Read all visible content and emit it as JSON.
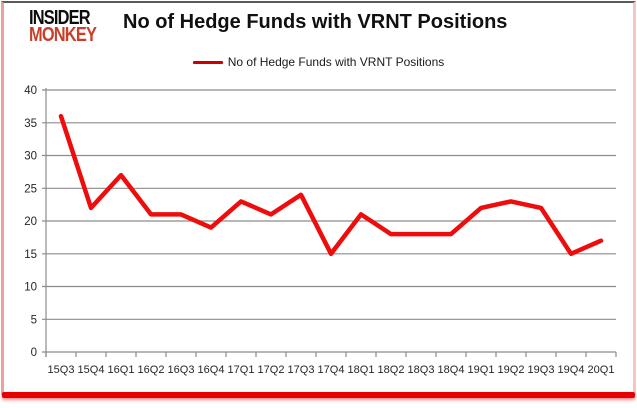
{
  "logo": {
    "line1": "INSIDER",
    "line2": "MONKEY"
  },
  "colors": {
    "line_red": "#ee0c0c",
    "legend_red": "#cc0000",
    "logo_red": "#c8402c",
    "bottom_bar_red": "#e60000",
    "grid_gray": "#8c8c8c",
    "label_dark": "#262626"
  },
  "chart_data": {
    "type": "line",
    "title": "No of Hedge Funds with VRNT Positions",
    "legend": "No of Hedge Funds with VRNT Positions",
    "categories": [
      "15Q3",
      "15Q4",
      "16Q1",
      "16Q2",
      "16Q3",
      "16Q4",
      "17Q1",
      "17Q2",
      "17Q3",
      "17Q4",
      "18Q1",
      "18Q2",
      "18Q3",
      "18Q4",
      "19Q1",
      "19Q2",
      "19Q3",
      "19Q4",
      "20Q1"
    ],
    "values": [
      36,
      22,
      27,
      21,
      21,
      19,
      23,
      21,
      24,
      15,
      21,
      18,
      18,
      18,
      22,
      23,
      22,
      15,
      17
    ],
    "ylim": [
      0,
      40
    ],
    "ytick_step": 5,
    "yticks": [
      0,
      5,
      10,
      15,
      20,
      25,
      30,
      35,
      40
    ],
    "xlabel": "",
    "ylabel": "",
    "grid": true,
    "legend_position": "top-center"
  }
}
